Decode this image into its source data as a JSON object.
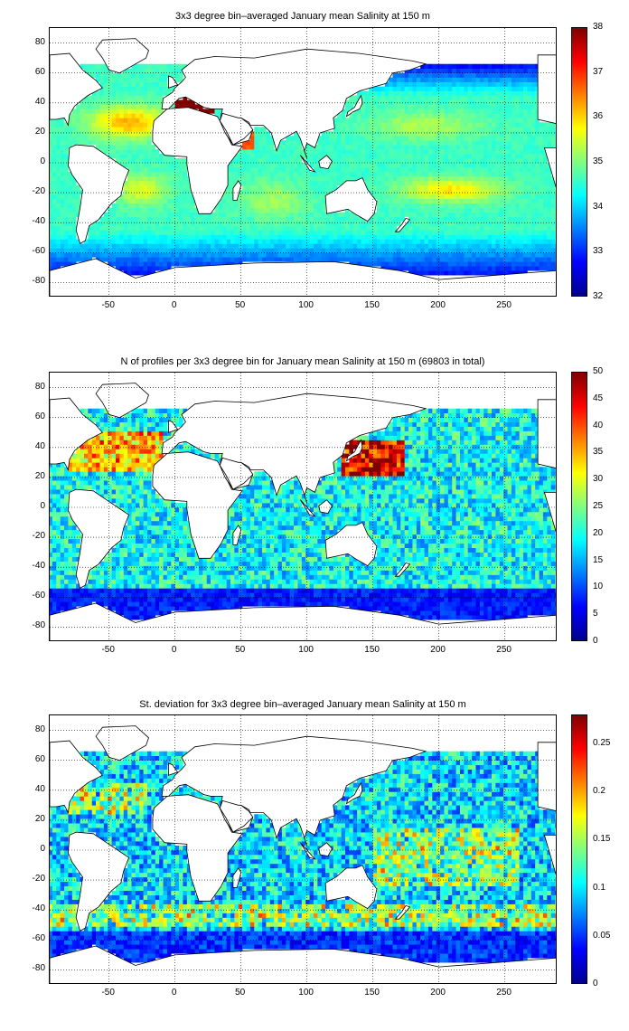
{
  "figure": {
    "panels": [
      {
        "title": "3x3 degree bin–averaged January mean Salinity at 150 m",
        "colorbar": {
          "min": 32,
          "max": 38,
          "ticks": [
            "38",
            "37",
            "36",
            "35",
            "34",
            "33",
            "32"
          ]
        }
      },
      {
        "title": "N of profiles per 3x3 degree bin for January mean Salinity at 150 m (69803 in total)",
        "colorbar": {
          "min": 0,
          "max": 50,
          "ticks": [
            "50",
            "45",
            "40",
            "35",
            "30",
            "25",
            "20",
            "15",
            "10",
            "5",
            "0"
          ]
        }
      },
      {
        "title": "St. deviation for 3x3 degree bin–averaged January mean Salinity at 150 m",
        "colorbar": {
          "min": 0,
          "max": 0.28,
          "ticks": [
            "0.25",
            "0.2",
            "0.15",
            "0.1",
            "0.05",
            "0"
          ]
        }
      }
    ]
  },
  "chart_data": {
    "type": "heatmap",
    "x_ticks": [
      "-50",
      "0",
      "50",
      "100",
      "150",
      "200",
      "250"
    ],
    "y_ticks": [
      "80",
      "60",
      "40",
      "20",
      "0",
      "-20",
      "-40",
      "-60",
      "-80"
    ],
    "xlim": [
      -95,
      290
    ],
    "ylim": [
      -90,
      90
    ],
    "grid": true,
    "colormap": "jet",
    "panels": [
      {
        "variable": "January mean Salinity at 150 m",
        "range": [
          32,
          38
        ]
      },
      {
        "variable": "N of profiles per 3x3 degree bin",
        "range": [
          0,
          50
        ],
        "total_profiles": 69803
      },
      {
        "variable": "St. deviation of January mean Salinity at 150 m",
        "range": [
          0,
          0.28
        ]
      }
    ]
  }
}
